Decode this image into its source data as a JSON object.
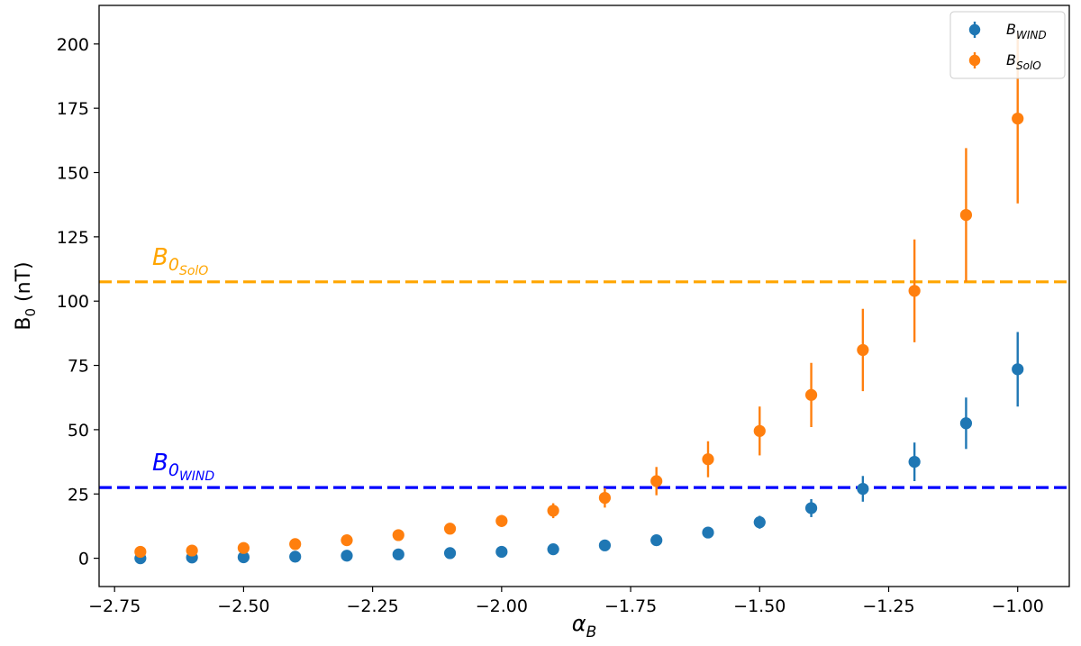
{
  "chart_data": {
    "type": "scatter",
    "xlabel": "α",
    "xlabel_sub": "B",
    "ylabel": "B",
    "ylabel_sub": "0",
    "ylabel_unit": " (nT)",
    "xlim": [
      -2.78,
      -0.9
    ],
    "ylim": [
      -11,
      215
    ],
    "xticks": [
      -2.75,
      -2.5,
      -2.25,
      -2.0,
      -1.75,
      -1.5,
      -1.25,
      -1.0
    ],
    "xtick_labels": [
      "−2.75",
      "−2.50",
      "−2.25",
      "−2.00",
      "−1.75",
      "−1.50",
      "−1.25",
      "−1.00"
    ],
    "yticks": [
      0,
      25,
      50,
      75,
      100,
      125,
      150,
      175,
      200
    ],
    "ytick_labels": [
      "0",
      "25",
      "50",
      "75",
      "100",
      "125",
      "150",
      "175",
      "200"
    ],
    "grid": false,
    "legend_position": "top-right",
    "x": [
      -2.7,
      -2.6,
      -2.5,
      -2.4,
      -2.3,
      -2.2,
      -2.1,
      -2.0,
      -1.9,
      -1.8,
      -1.7,
      -1.6,
      -1.5,
      -1.4,
      -1.3,
      -1.2,
      -1.1,
      -1.0
    ],
    "series": [
      {
        "name": "B",
        "name_sub": "WIND",
        "color": "#1f77b4",
        "values": [
          0,
          0.3,
          0.4,
          0.6,
          1.0,
          1.5,
          2.0,
          2.5,
          3.5,
          5.0,
          7.0,
          10.0,
          14.0,
          19.5,
          27.0,
          37.5,
          52.5,
          73.5
        ],
        "errors": [
          0.1,
          0.1,
          0.2,
          0.2,
          0.3,
          0.4,
          0.5,
          0.7,
          0.9,
          1.2,
          1.5,
          2.0,
          2.5,
          3.5,
          5.0,
          7.5,
          10.0,
          14.5
        ]
      },
      {
        "name": "B",
        "name_sub": "SolO",
        "color": "#ff7f0e",
        "values": [
          2.5,
          3.0,
          4.0,
          5.5,
          7.0,
          9.0,
          11.5,
          14.5,
          18.5,
          23.5,
          30.0,
          38.5,
          49.5,
          63.5,
          81.0,
          104.0,
          133.5,
          171.0
        ],
        "errors": [
          0.4,
          0.5,
          0.7,
          0.9,
          1.1,
          1.4,
          1.8,
          2.3,
          2.9,
          3.8,
          5.5,
          7.0,
          9.5,
          12.5,
          16.0,
          20.0,
          26.0,
          33.0
        ]
      }
    ],
    "hlines": [
      {
        "label": "B",
        "label_sub": "0",
        "label_subsub": "SolO",
        "value": 107.5,
        "color": "#ffa500"
      },
      {
        "label": "B",
        "label_sub": "0",
        "label_subsub": "WIND",
        "value": 27.5,
        "color": "#0000ff"
      }
    ]
  }
}
